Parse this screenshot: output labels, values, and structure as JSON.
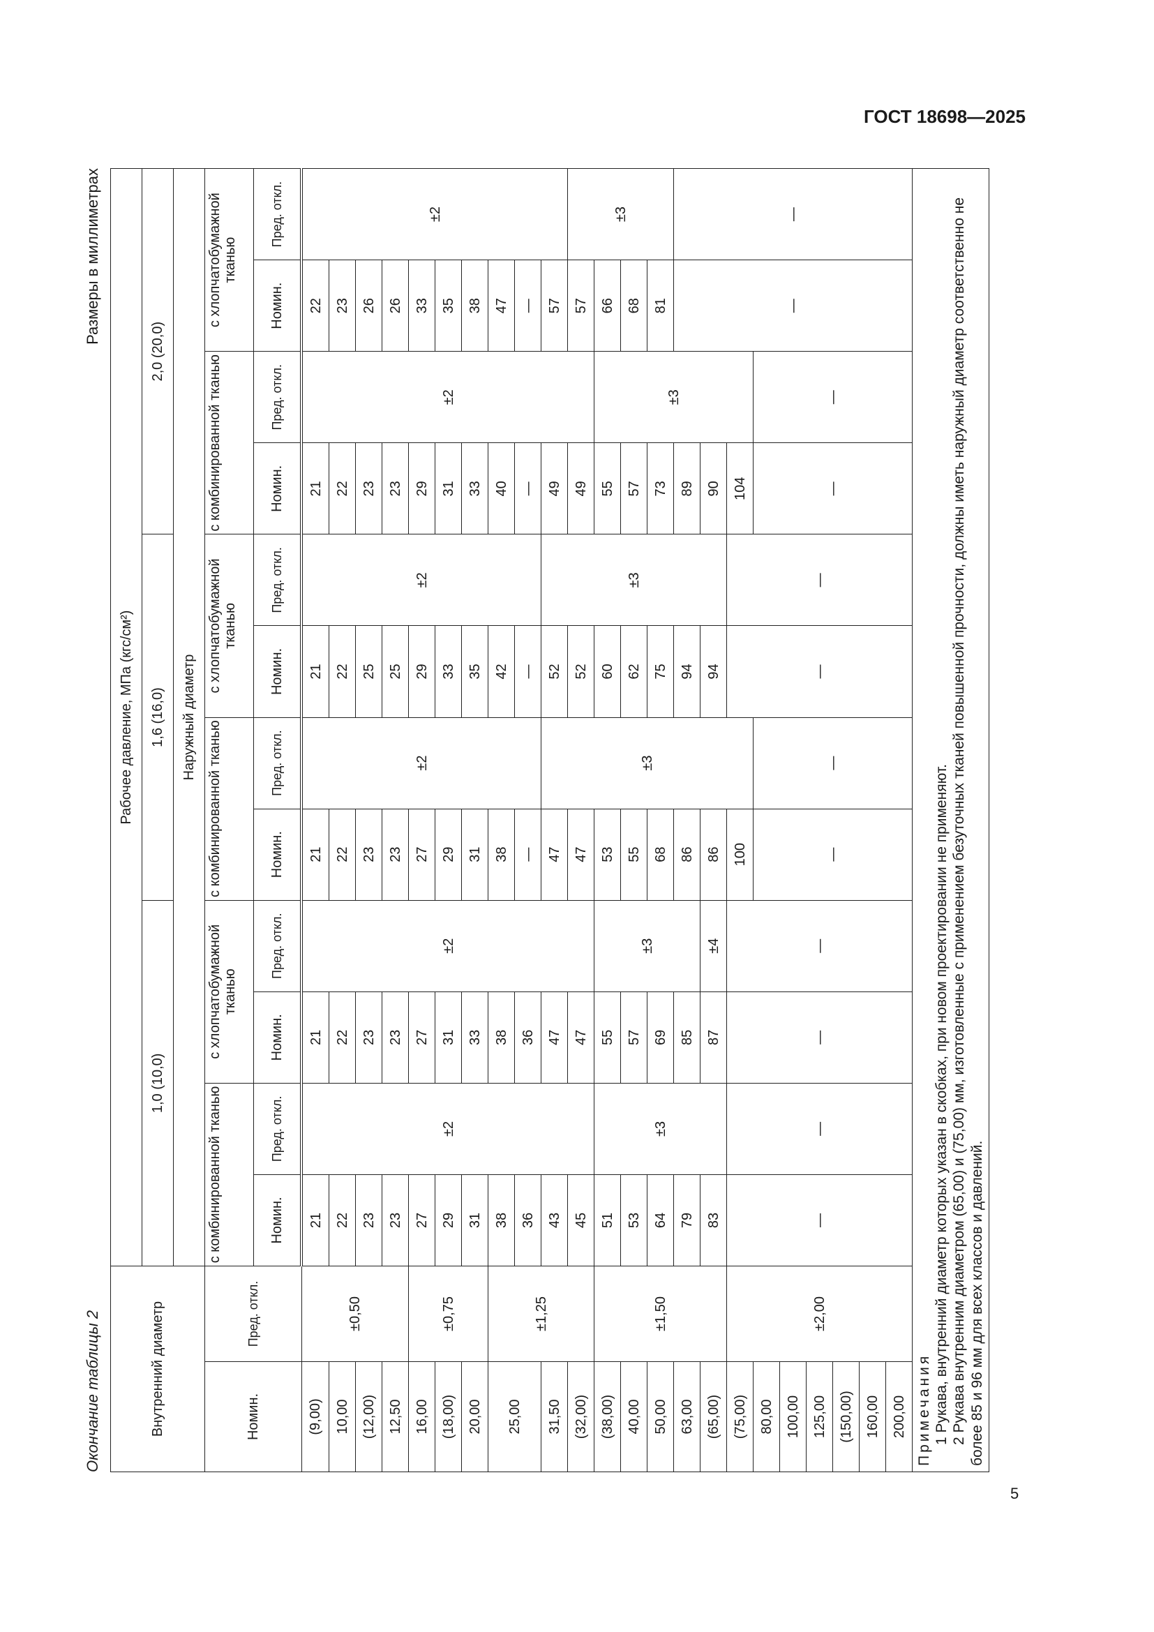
{
  "header": {
    "doc_code": "ГОСТ 18698—2025"
  },
  "page_number": "5",
  "caption": "Окончание таблицы 2",
  "units": "Размеры в миллиметрах",
  "thead": {
    "inner_diameter": "Внутренний диаметр",
    "working_pressure": "Рабочее давление, МПа (кгс/см²)",
    "p1": "1,0 (10,0)",
    "p2": "1,6 (16,0)",
    "p3": "2,0 (20,0)",
    "outer_diameter": "Наружный диаметр",
    "combined": "с комбинированной тканью",
    "cotton": "с хлопчатобумажной тканью",
    "nom": "Номин.",
    "tol": "Пред. откл."
  },
  "body": {
    "columns": [
      {
        "name": "inner-nom",
        "cells": [
          [
            "(9,00)",
            1
          ],
          [
            "10,00",
            1
          ],
          [
            "(12,00)",
            1
          ],
          [
            "12,50",
            1
          ],
          [
            "16,00",
            1
          ],
          [
            "(18,00)",
            1
          ],
          [
            "20,00",
            1
          ],
          [
            "25,00",
            2
          ],
          [
            "31,50",
            1
          ],
          [
            "(32,00)",
            1
          ],
          [
            "(38,00)",
            1
          ],
          [
            "40,00",
            1
          ],
          [
            "50,00",
            1
          ],
          [
            "63,00",
            1
          ],
          [
            "(65,00)",
            1
          ],
          [
            "(75,00)",
            1
          ],
          [
            "80,00",
            1
          ],
          [
            "100,00",
            1
          ],
          [
            "125,00",
            1
          ],
          [
            "(150,00)",
            1
          ],
          [
            "160,00",
            1
          ],
          [
            "200,00",
            1
          ]
        ]
      },
      {
        "name": "inner-tol",
        "cells": [
          [
            "±0,50",
            4
          ],
          [
            "±0,75",
            3
          ],
          [
            "±1,25",
            4
          ],
          [
            "±1,50",
            5
          ],
          [
            "±2,00",
            7
          ]
        ]
      },
      {
        "name": "p1-combined-nom",
        "cells": [
          [
            "21",
            1
          ],
          [
            "22",
            1
          ],
          [
            "23",
            1
          ],
          [
            "23",
            1
          ],
          [
            "27",
            1
          ],
          [
            "29",
            1
          ],
          [
            "31",
            1
          ],
          [
            "38",
            1
          ],
          [
            "36",
            1
          ],
          [
            "43",
            1
          ],
          [
            "45",
            1
          ],
          [
            "51",
            1
          ],
          [
            "53",
            1
          ],
          [
            "64",
            1
          ],
          [
            "79",
            1
          ],
          [
            "83",
            1
          ],
          [
            "—",
            7
          ]
        ]
      },
      {
        "name": "p1-combined-tol",
        "cells": [
          [
            "±2",
            11
          ],
          [
            "±3",
            5
          ],
          [
            "—",
            7
          ]
        ]
      },
      {
        "name": "p1-cotton-nom",
        "cells": [
          [
            "21",
            1
          ],
          [
            "22",
            1
          ],
          [
            "23",
            1
          ],
          [
            "23",
            1
          ],
          [
            "27",
            1
          ],
          [
            "31",
            1
          ],
          [
            "33",
            1
          ],
          [
            "38",
            1
          ],
          [
            "36",
            1
          ],
          [
            "47",
            1
          ],
          [
            "47",
            1
          ],
          [
            "55",
            1
          ],
          [
            "57",
            1
          ],
          [
            "69",
            1
          ],
          [
            "85",
            1
          ],
          [
            "87",
            1
          ],
          [
            "—",
            7
          ]
        ]
      },
      {
        "name": "p1-cotton-tol",
        "cells": [
          [
            "±2",
            11
          ],
          [
            "±3",
            4
          ],
          [
            "±4",
            1
          ],
          [
            "—",
            7
          ]
        ]
      },
      {
        "name": "p2-combined-nom",
        "cells": [
          [
            "21",
            1
          ],
          [
            "22",
            1
          ],
          [
            "23",
            1
          ],
          [
            "23",
            1
          ],
          [
            "27",
            1
          ],
          [
            "29",
            1
          ],
          [
            "31",
            1
          ],
          [
            "38",
            1
          ],
          [
            "—",
            1
          ],
          [
            "47",
            1
          ],
          [
            "47",
            1
          ],
          [
            "53",
            1
          ],
          [
            "55",
            1
          ],
          [
            "68",
            1
          ],
          [
            "86",
            1
          ],
          [
            "86",
            1
          ],
          [
            "100",
            1
          ],
          [
            "—",
            6
          ]
        ]
      },
      {
        "name": "p2-combined-tol",
        "cells": [
          [
            "±2",
            9
          ],
          [
            "±3",
            8
          ],
          [
            "—",
            6
          ]
        ]
      },
      {
        "name": "p2-cotton-nom",
        "cells": [
          [
            "21",
            1
          ],
          [
            "22",
            1
          ],
          [
            "25",
            1
          ],
          [
            "25",
            1
          ],
          [
            "29",
            1
          ],
          [
            "33",
            1
          ],
          [
            "35",
            1
          ],
          [
            "42",
            1
          ],
          [
            "—",
            1
          ],
          [
            "52",
            1
          ],
          [
            "52",
            1
          ],
          [
            "60",
            1
          ],
          [
            "62",
            1
          ],
          [
            "75",
            1
          ],
          [
            "94",
            1
          ],
          [
            "94",
            1
          ],
          [
            "—",
            7
          ]
        ]
      },
      {
        "name": "p2-cotton-tol",
        "cells": [
          [
            "±2",
            9
          ],
          [
            "±3",
            7
          ],
          [
            "—",
            7
          ]
        ]
      },
      {
        "name": "p3-combined-nom",
        "cells": [
          [
            "21",
            1
          ],
          [
            "22",
            1
          ],
          [
            "23",
            1
          ],
          [
            "23",
            1
          ],
          [
            "29",
            1
          ],
          [
            "31",
            1
          ],
          [
            "33",
            1
          ],
          [
            "40",
            1
          ],
          [
            "—",
            1
          ],
          [
            "49",
            1
          ],
          [
            "49",
            1
          ],
          [
            "55",
            1
          ],
          [
            "57",
            1
          ],
          [
            "73",
            1
          ],
          [
            "89",
            1
          ],
          [
            "90",
            1
          ],
          [
            "104",
            1
          ],
          [
            "—",
            6
          ]
        ]
      },
      {
        "name": "p3-combined-tol",
        "cells": [
          [
            "±2",
            11
          ],
          [
            "±3",
            6
          ],
          [
            "—",
            6
          ]
        ]
      },
      {
        "name": "p3-cotton-nom",
        "cells": [
          [
            "22",
            1
          ],
          [
            "23",
            1
          ],
          [
            "26",
            1
          ],
          [
            "26",
            1
          ],
          [
            "33",
            1
          ],
          [
            "35",
            1
          ],
          [
            "38",
            1
          ],
          [
            "47",
            1
          ],
          [
            "—",
            1
          ],
          [
            "57",
            1
          ],
          [
            "57",
            1
          ],
          [
            "66",
            1
          ],
          [
            "68",
            1
          ],
          [
            "81",
            1
          ],
          [
            "—",
            9
          ]
        ]
      },
      {
        "name": "p3-cotton-tol",
        "cells": [
          [
            "±2",
            10
          ],
          [
            "±3",
            4
          ],
          [
            "—",
            9
          ]
        ]
      }
    ]
  },
  "notes": {
    "title": "Примечания",
    "items": [
      "1 Рукава, внутренний диаметр которых указан в скобках, при новом проектировании не применяют.",
      "2 Рукава внутренним диаметром (65,00) и (75,00) мм, изготовленные с применением безуточных тканей повышенной прочности, должны иметь наружный диаметр соответственно не более 85 и 96 мм для всех классов и давлений."
    ]
  }
}
